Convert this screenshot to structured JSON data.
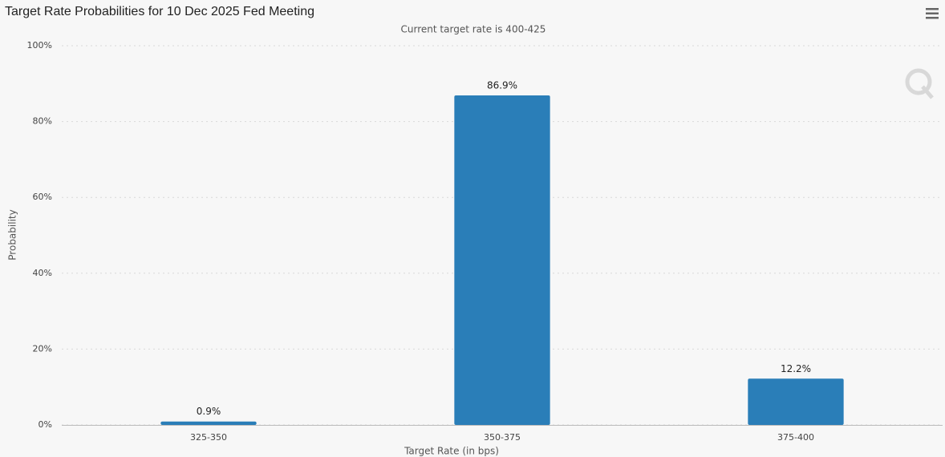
{
  "chart_data": {
    "type": "bar",
    "title": "Target Rate Probabilities for 10 Dec 2025 Fed Meeting",
    "subtitle": "Current target rate is 400-425",
    "x_label": "Target Rate (in bps)",
    "y_label": "Probability",
    "categories": [
      "325-350",
      "350-375",
      "375-400"
    ],
    "values": [
      0.9,
      86.9,
      12.2
    ],
    "value_labels": [
      "0.9%",
      "86.9%",
      "12.2%"
    ],
    "color": "#2a7eb8",
    "ylim": [
      0,
      100
    ],
    "yticks": [
      {
        "value": 0,
        "label": "0%"
      },
      {
        "value": 20,
        "label": "20%"
      },
      {
        "value": 40,
        "label": "40%"
      },
      {
        "value": 60,
        "label": "60%"
      },
      {
        "value": 80,
        "label": "80%"
      },
      {
        "value": 100,
        "label": "100%"
      }
    ],
    "grid": true
  }
}
